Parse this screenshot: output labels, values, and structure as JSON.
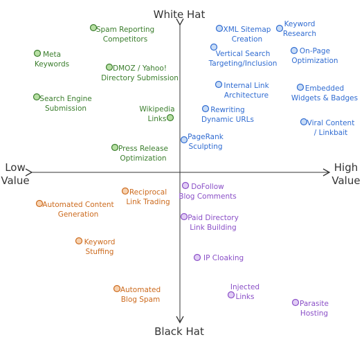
{
  "axes": {
    "top": "White Hat",
    "bottom": "Black Hat",
    "left": [
      "Low",
      "Value"
    ],
    "right": [
      "High",
      "Value"
    ]
  },
  "colors": {
    "axis": "#333333",
    "green": "#3a7d2c",
    "green_fill": "#b7dfa3",
    "blue": "#2f6bd1",
    "blue_fill": "#c8dcf6",
    "orange": "#cc6a1d",
    "orange_fill": "#f7d2b0",
    "purple": "#8a4fc7",
    "purple_fill": "#e1cdf5"
  },
  "items": [
    {
      "id": "spam-reporting-competitors",
      "group": "green",
      "lines": [
        "Spam Reporting",
        "Competitors"
      ]
    },
    {
      "id": "meta-keywords",
      "group": "green",
      "lines": [
        "Meta",
        "Keywords"
      ]
    },
    {
      "id": "dmoz-yahoo-directory",
      "group": "green",
      "lines": [
        "DMOZ / Yahoo!",
        "Directory Submission"
      ]
    },
    {
      "id": "search-engine-submission",
      "group": "green",
      "lines": [
        "Search Engine",
        "Submission"
      ]
    },
    {
      "id": "wikipedia-links",
      "group": "green",
      "lines": [
        "Wikipedia",
        "Links"
      ]
    },
    {
      "id": "press-release-optimization",
      "group": "green",
      "lines": [
        "Press Release",
        "Optimization"
      ]
    },
    {
      "id": "xml-sitemap-creation",
      "group": "blue",
      "lines": [
        "XML Sitemap",
        "Creation"
      ]
    },
    {
      "id": "keyword-research",
      "group": "blue",
      "lines": [
        "Keyword",
        "Research"
      ]
    },
    {
      "id": "vertical-search-targeting",
      "group": "blue",
      "lines": [
        "Vertical Search",
        "Targeting/Inclusion"
      ]
    },
    {
      "id": "on-page-optimization",
      "group": "blue",
      "lines": [
        "On-Page",
        "Optimization"
      ]
    },
    {
      "id": "internal-link-architecture",
      "group": "blue",
      "lines": [
        "Internal Link",
        "Architecture"
      ]
    },
    {
      "id": "embedded-widgets-badges",
      "group": "blue",
      "lines": [
        "Embedded",
        "Widgets & Badges"
      ]
    },
    {
      "id": "rewriting-dynamic-urls",
      "group": "blue",
      "lines": [
        "Rewriting",
        "Dynamic URLs"
      ]
    },
    {
      "id": "viral-content-linkbait",
      "group": "blue",
      "lines": [
        "Viral Content",
        "/ Linkbait"
      ]
    },
    {
      "id": "pagerank-sculpting",
      "group": "blue",
      "lines": [
        "PageRank",
        "Sculpting"
      ]
    },
    {
      "id": "reciprocal-link-trading",
      "group": "orange",
      "lines": [
        "Reciprocal",
        "Link Trading"
      ]
    },
    {
      "id": "automated-content-generation",
      "group": "orange",
      "lines": [
        "Automated Content",
        "Generation"
      ]
    },
    {
      "id": "keyword-stuffing",
      "group": "orange",
      "lines": [
        "Keyword",
        "Stuffing"
      ]
    },
    {
      "id": "automated-blog-spam",
      "group": "orange",
      "lines": [
        "Automated",
        "Blog Spam"
      ]
    },
    {
      "id": "dofollow-blog-comments",
      "group": "purple",
      "lines": [
        "DoFollow",
        "Blog Comments"
      ]
    },
    {
      "id": "paid-directory-link-building",
      "group": "purple",
      "lines": [
        "Paid Directory",
        "Link Building"
      ]
    },
    {
      "id": "ip-cloaking",
      "group": "purple",
      "lines": [
        "IP Cloaking"
      ]
    },
    {
      "id": "injected-links",
      "group": "purple",
      "lines": [
        "Injected",
        "Links"
      ]
    },
    {
      "id": "parasite-hosting",
      "group": "purple",
      "lines": [
        "Parasite",
        "Hosting"
      ]
    }
  ]
}
